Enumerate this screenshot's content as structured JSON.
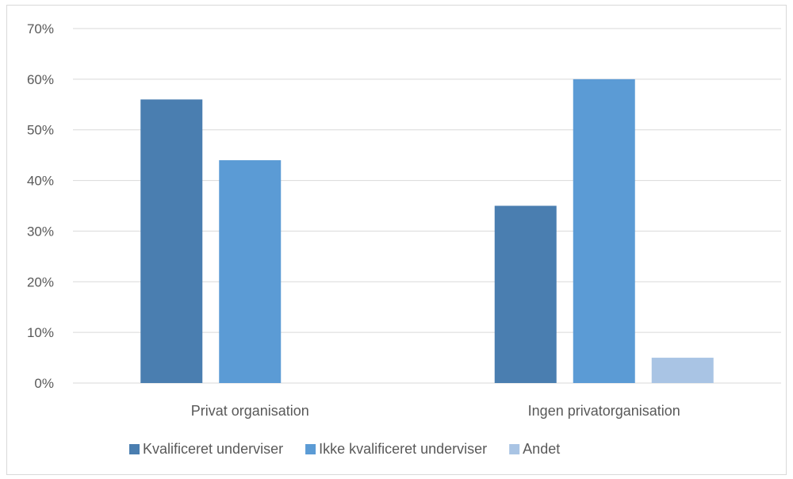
{
  "chart_data": {
    "type": "bar",
    "title": "",
    "xlabel": "",
    "ylabel": "",
    "categories": [
      "Privat organisation",
      "Ingen privatorganisation"
    ],
    "series": [
      {
        "name": "Kvalificeret underviser",
        "values": [
          0.56,
          0.35
        ],
        "color": "#4a7eb0"
      },
      {
        "name": "Ikke kvalificeret underviser",
        "values": [
          0.44,
          0.6
        ],
        "color": "#5b9bd5"
      },
      {
        "name": "Andet",
        "values": [
          0.0,
          0.05
        ],
        "color": "#a9c4e4"
      }
    ],
    "ylim": [
      0,
      0.7
    ],
    "yticks": [
      "0%",
      "10%",
      "20%",
      "30%",
      "40%",
      "50%",
      "60%",
      "70%"
    ],
    "grid": true,
    "legend_position": "bottom"
  }
}
